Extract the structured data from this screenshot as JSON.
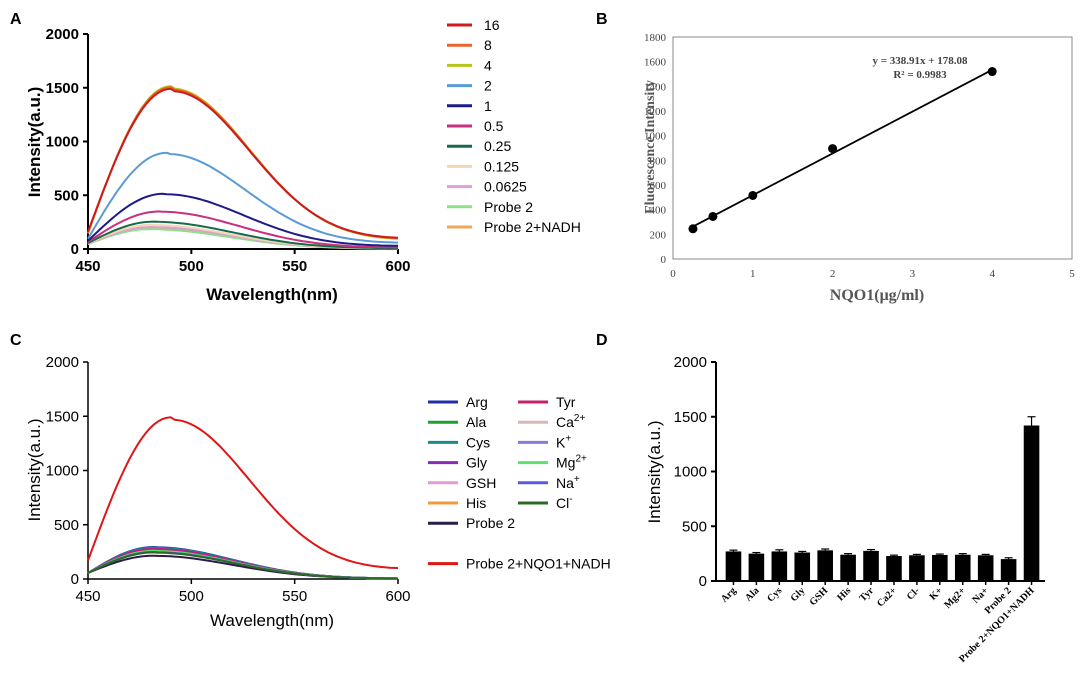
{
  "panels": [
    {
      "label": "A",
      "type": "line",
      "xlabel": "Wavelength(nm)",
      "ylabel": "Intensity(a.u.)",
      "xlim": [
        450,
        600
      ],
      "ylim": [
        0,
        2000
      ],
      "xticks": [
        "450",
        "500",
        "550",
        "600"
      ],
      "yticks": [
        "0",
        "500",
        "1000",
        "1500",
        "2000"
      ],
      "series": [
        {
          "name": "16",
          "color": "#cc1b1b",
          "x0": 450,
          "peak_x": 490,
          "peak": 1490,
          "y0": 160,
          "y_end": 105
        },
        {
          "name": "8",
          "color": "#e8642a",
          "x0": 450,
          "peak_x": 490,
          "peak": 1505,
          "y0": 150,
          "y_end": 100
        },
        {
          "name": "4",
          "color": "#b6c61a",
          "x0": 450,
          "peak_x": 490,
          "peak": 1515,
          "y0": 145,
          "y_end": 95
        },
        {
          "name": "2",
          "color": "#5b9bd5",
          "x0": 450,
          "peak_x": 488,
          "peak": 895,
          "y0": 95,
          "y_end": 60
        },
        {
          "name": "1",
          "color": "#1c1c86",
          "x0": 450,
          "peak_x": 487,
          "peak": 515,
          "y0": 75,
          "y_end": 30
        },
        {
          "name": "0.5",
          "color": "#c8307e",
          "x0": 450,
          "peak_x": 485,
          "peak": 350,
          "y0": 65,
          "y_end": 15
        },
        {
          "name": "0.25",
          "color": "#156b4a",
          "x0": 450,
          "peak_x": 482,
          "peak": 255,
          "y0": 55,
          "y_end": 8
        },
        {
          "name": "0.125",
          "color": "#f3d7b3",
          "x0": 450,
          "peak_x": 481,
          "peak": 225,
          "y0": 50,
          "y_end": 6
        },
        {
          "name": "0.0625",
          "color": "#dc9fd6",
          "x0": 450,
          "peak_x": 481,
          "peak": 205,
          "y0": 48,
          "y_end": 5
        },
        {
          "name": "Probe 2",
          "color": "#8fe08a",
          "x0": 450,
          "peak_x": 480,
          "peak": 185,
          "y0": 45,
          "y_end": 4
        },
        {
          "name": "Probe 2+NADH",
          "color": "#f0a95a",
          "x0": 450,
          "peak_x": 480,
          "peak": 200,
          "y0": 46,
          "y_end": 5
        }
      ]
    },
    {
      "label": "B",
      "type": "scatter",
      "xlabel": "NQO1(μg/ml)",
      "ylabel": "Fluorescence Intensity",
      "xlim": [
        0,
        5
      ],
      "ylim": [
        0,
        1800
      ],
      "xticks": [
        "0",
        "1",
        "2",
        "3",
        "4",
        "5"
      ],
      "yticks": [
        "0",
        "200",
        "400",
        "600",
        "800",
        "1000",
        "1200",
        "1400",
        "1600",
        "1800"
      ],
      "points": [
        [
          0.25,
          245
        ],
        [
          0.5,
          345
        ],
        [
          1,
          515
        ],
        [
          2,
          895
        ],
        [
          4,
          1520
        ]
      ],
      "fit": {
        "slope": 338.91,
        "intercept": 178.08,
        "x_range": [
          0.25,
          4
        ]
      },
      "equation": "y = 338.91x + 178.08",
      "r2_text": "R² = 0.9983"
    },
    {
      "label": "C",
      "type": "line",
      "xlabel": "Wavelength(nm)",
      "ylabel": "Intensity(a.u.)",
      "xlim": [
        450,
        600
      ],
      "ylim": [
        0,
        2000
      ],
      "xticks": [
        "450",
        "500",
        "550",
        "600"
      ],
      "yticks": [
        "0",
        "500",
        "1000",
        "1500",
        "2000"
      ],
      "legend_col1": [
        {
          "name": "Arg",
          "color": "#1f2fa8",
          "peak": 295
        },
        {
          "name": "Ala",
          "color": "#1aa12e",
          "peak": 285
        },
        {
          "name": "Cys",
          "color": "#1b8a8a",
          "peak": 290
        },
        {
          "name": "Gly",
          "color": "#8a2bb8",
          "peak": 280
        },
        {
          "name": "GSH",
          "color": "#e49ad8",
          "peak": 270
        },
        {
          "name": "His",
          "color": "#f29a3a",
          "peak": 265
        },
        {
          "name": "Probe 2",
          "color": "#2c1a4a",
          "peak": 215
        }
      ],
      "legend_col2": [
        {
          "name": "Tyr",
          "color": "#c4206e",
          "peak": 275
        },
        {
          "name": "Ca",
          "sup": "2+",
          "color": "#d8b7b7",
          "peak": 250
        },
        {
          "name": "K",
          "sup": "+",
          "color": "#8a7ae0",
          "peak": 255
        },
        {
          "name": "Mg",
          "sup": "2+",
          "color": "#59e36b",
          "peak": 260
        },
        {
          "name": "Na",
          "sup": "+",
          "color": "#5a5ae0",
          "peak": 250
        },
        {
          "name": "Cl",
          "sup": "-",
          "color": "#2a6a25",
          "peak": 245
        }
      ],
      "main_series": {
        "name": "Probe 2+NQO1+NADH",
        "color": "#e01515",
        "peak": 1490
      }
    },
    {
      "label": "D",
      "type": "bar",
      "ylabel": "Intensity(a.u.)",
      "ylim": [
        0,
        2000
      ],
      "yticks": [
        "0",
        "500",
        "1000",
        "1500",
        "2000"
      ],
      "categories": [
        "Arg",
        "Ala",
        "Cys",
        "Gly",
        "GSH",
        "His",
        "Tyr",
        "Ca2+",
        "Cl-",
        "K+",
        "Mg2+",
        "Na+",
        "Probe 2",
        "Probe 2+NQO1+NADH"
      ],
      "values": [
        270,
        250,
        270,
        260,
        280,
        240,
        275,
        228,
        235,
        238,
        240,
        235,
        200,
        1420
      ],
      "errors": [
        12,
        10,
        15,
        10,
        12,
        10,
        12,
        8,
        8,
        8,
        10,
        8,
        12,
        80
      ]
    }
  ]
}
